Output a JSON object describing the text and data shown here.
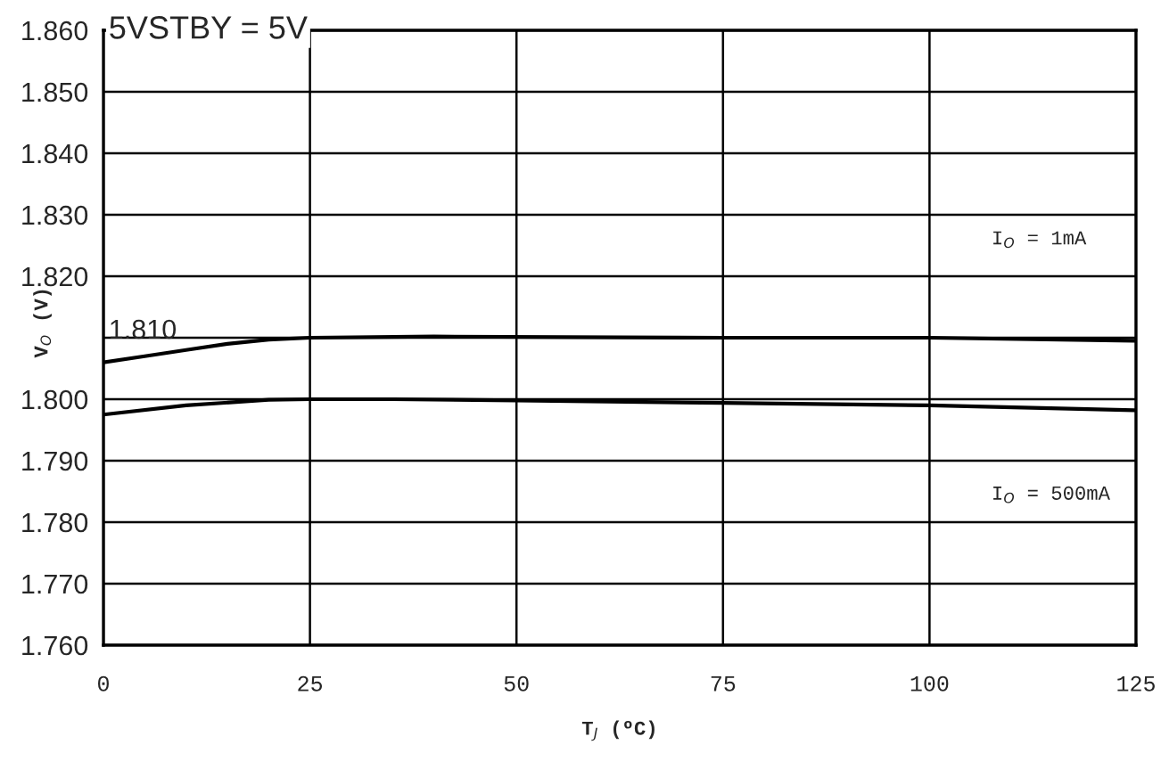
{
  "chart_data": {
    "type": "line",
    "title": "5VSTBY = 5V",
    "xlabel": "T$_{J}$ (ºC)",
    "ylabel": "V$_{O}$ (V)",
    "series": [
      {
        "color": "#000000",
        "x": [
          0,
          5,
          10,
          15,
          20,
          25,
          40,
          75,
          100,
          125
        ],
        "values": [
          1.806,
          1.807,
          1.808,
          1.809,
          1.8097,
          1.81,
          1.8102,
          1.81,
          1.81,
          1.8095
        ]
      },
      {
        "color": "#000000",
        "x": [
          0,
          10,
          20,
          25,
          35,
          50,
          75,
          100,
          125
        ],
        "values": [
          1.7975,
          1.799,
          1.7999,
          1.8,
          1.8,
          1.7998,
          1.7994,
          1.799,
          1.7982
        ]
      }
    ],
    "annotations": [
      "1.810",
      "I$_{O}$ = 1mA",
      "I$_{O}$ = 500mA"
    ],
    "xlim": [
      0,
      125
    ],
    "xticks": [
      0,
      25,
      50,
      75,
      100,
      125
    ],
    "ylim": [
      1.76,
      1.86
    ],
    "yticks": [
      {
        "value": 1.76,
        "label": "1.760"
      },
      {
        "value": 1.77,
        "label": "1.770"
      },
      {
        "value": 1.78,
        "label": "1.780"
      },
      {
        "value": 1.79,
        "label": "1.790"
      },
      {
        "value": 1.8,
        "label": "1.800"
      },
      {
        "value": 1.81,
        "label": null
      },
      {
        "value": 1.82,
        "label": "1.820"
      },
      {
        "value": 1.83,
        "label": "1.830"
      },
      {
        "value": 1.84,
        "label": "1.840"
      },
      {
        "value": 1.85,
        "label": "1.850"
      },
      {
        "value": 1.86,
        "label": "1.860"
      }
    ],
    "grid": true,
    "legend": false,
    "marker": "none",
    "line_style": "solid"
  }
}
